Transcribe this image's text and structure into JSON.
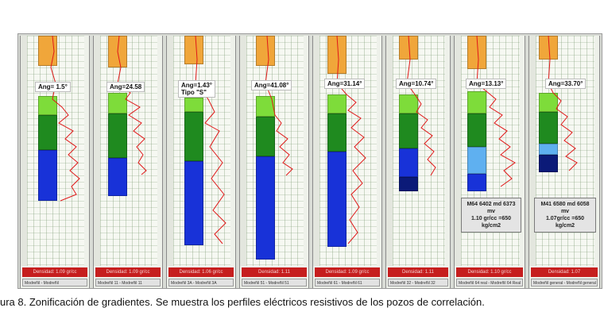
{
  "caption": "ura 8. Zonificación de gradientes. Se muestra los perfiles eléctricos resistivos de los pozos de correlación.",
  "colors": {
    "orange_formation": "#f0a63a",
    "light_green": "#7edc3a",
    "dark_green": "#1f8a1f",
    "blue": "#1832d8",
    "light_blue": "#5fb0f0",
    "navy": "#0b1a78",
    "curve_red": "#e01818",
    "density_bar": "#c61e1e"
  },
  "panels": [
    {
      "angle": "Ang= 1.5°",
      "subtitle": "",
      "density": "Densidad: 1.09 gr/cc",
      "track": "Modreñil - Modreñil",
      "note": ""
    },
    {
      "angle": "Ang=24.58",
      "subtitle": "",
      "density": "Densidad: 1.09 gr/cc",
      "track": "Modreñil 11 - Modreñil 11",
      "note": ""
    },
    {
      "angle": "Ang=1.43°",
      "subtitle": "Tipo \"S\"",
      "density": "Densidad: 1.06 gr/cc",
      "track": "Modreñil 3A - Modreñil 3A",
      "note": ""
    },
    {
      "angle": "Ang=41.08°",
      "subtitle": "",
      "density": "Densidad: 1.11",
      "track": "Modreñil 51 - Modreñil 51",
      "note": ""
    },
    {
      "angle": "Ang=31.14°",
      "subtitle": "",
      "density": "Densidad: 1.09 gr/cc",
      "track": "Modreñil 61 - Modreñil 61",
      "note": ""
    },
    {
      "angle": "Ang=10.74°",
      "subtitle": "",
      "density": "Densidad: 1.11",
      "track": "Modreñil 32 - Modreñil 32",
      "note": ""
    },
    {
      "angle": "Ang=13.13°",
      "subtitle": "",
      "density": "Densidad: 1.10 gr/cc",
      "track": "Modreñil 64 real - Modreñil 64 Real",
      "note": "M64 6402 md 6373\nmv\n1.10 gr/cc =650\nkg/cm2"
    },
    {
      "angle": "Ang=33.70°",
      "subtitle": "",
      "density": "Densidad: 1.07",
      "track": "Modreñil general - Modreñil general",
      "note": "M41 6580 md 6058\nmv\n1.07gr/cc =650\nkg/cm2"
    }
  ]
}
